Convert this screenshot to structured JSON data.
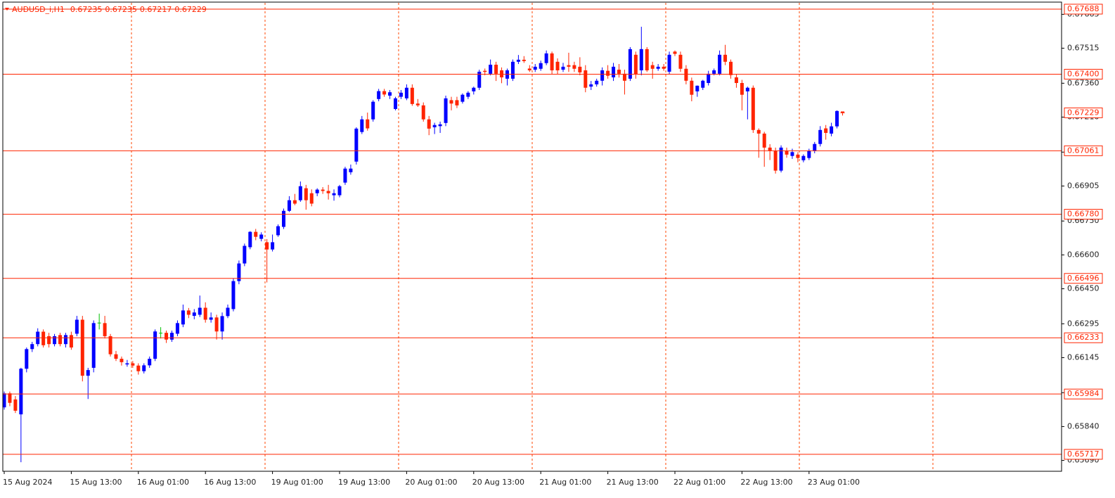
{
  "chart_data": {
    "type": "candlestick",
    "title": "AUDUSD_i,H1",
    "up_color": "#0000ff",
    "down_color": "#ff2400",
    "doji_color": "#00c000",
    "level_color": "#ff2400",
    "ylim": [
      0.65642,
      0.67716
    ],
    "yticks": [
      0.67665,
      0.67515,
      {
        "value": 0.6736,
        "label": "0.67360"
      },
      {
        "value": 0.6721,
        "label": "0.67210"
      },
      0.67055,
      0.66905,
      {
        "value": 0.6675,
        "label": "0.66750"
      },
      {
        "value": 0.666,
        "label": "0.66600"
      },
      {
        "value": 0.6645,
        "label": "0.66450"
      },
      0.66295,
      0.66145,
      {
        "value": 0.6599,
        "label": "0.65990"
      },
      {
        "value": 0.6584,
        "label": "0.65840"
      },
      {
        "value": 0.6569,
        "label": "0.65690"
      }
    ],
    "levels": [
      0.67688,
      {
        "value": 0.674,
        "label": "0.67400"
      },
      0.67061,
      {
        "value": 0.6678,
        "label": "0.66780"
      },
      0.66496,
      0.66233,
      0.65984,
      0.65717
    ],
    "categories": [
      "15 Aug 2024",
      null,
      null,
      null,
      null,
      null,
      null,
      null,
      null,
      null,
      null,
      null,
      "15 Aug 13:00",
      null,
      null,
      null,
      null,
      null,
      null,
      null,
      null,
      null,
      null,
      null,
      "16 Aug 01:00",
      null,
      null,
      null,
      null,
      null,
      null,
      null,
      null,
      null,
      null,
      null,
      "16 Aug 13:00",
      null,
      null,
      null,
      null,
      null,
      null,
      null,
      null,
      null,
      null,
      null,
      "19 Aug 01:00",
      null,
      null,
      null,
      null,
      null,
      null,
      null,
      null,
      null,
      null,
      null,
      "19 Aug 13:00",
      null,
      null,
      null,
      null,
      null,
      null,
      null,
      null,
      null,
      null,
      null,
      "20 Aug 01:00",
      null,
      null,
      null,
      null,
      null,
      null,
      null,
      null,
      null,
      null,
      null,
      "20 Aug 13:00",
      null,
      null,
      null,
      null,
      null,
      null,
      null,
      null,
      null,
      null,
      null,
      "21 Aug 01:00",
      null,
      null,
      null,
      null,
      null,
      null,
      null,
      null,
      null,
      null,
      null,
      "21 Aug 13:00",
      null,
      null,
      null,
      null,
      null,
      null,
      null,
      null,
      null,
      null,
      null,
      "22 Aug 01:00",
      null,
      null,
      null,
      null,
      null,
      null,
      null,
      null,
      null,
      null,
      null,
      "22 Aug 13:00",
      null,
      null,
      null,
      null,
      null,
      null,
      null,
      null,
      null,
      null,
      null,
      "23 Aug 01:00",
      null,
      null,
      null,
      null,
      null,
      null
    ],
    "open": [
      0.65925,
      0.65987,
      0.6596,
      0.65894,
      0.66096,
      0.66183,
      0.66205,
      0.6626,
      0.6624,
      0.66205,
      0.66245,
      0.66205,
      0.66245,
      0.66251,
      0.66313,
      0.66065,
      0.661,
      0.663,
      0.66298,
      0.6624,
      0.6616,
      0.6614,
      0.66115,
      0.6612,
      0.6611,
      0.66085,
      0.66111,
      0.6614,
      0.66255,
      0.66255,
      0.66225,
      0.66251,
      0.66292,
      0.66354,
      0.6633,
      0.66335,
      0.66366,
      0.66313,
      0.66323,
      0.66261,
      0.66329,
      0.6636,
      0.66484,
      0.66562,
      0.66634,
      0.66702,
      0.66671,
      0.66656,
      0.66624,
      0.66687,
      0.66724,
      0.66795,
      0.66842,
      0.66842,
      0.66895,
      0.66873,
      0.66873,
      0.66889,
      0.66883,
      0.66864,
      0.66864,
      0.6692,
      0.66966,
      0.67013,
      0.67144,
      0.672,
      0.672,
      0.6729,
      0.67325,
      0.67305,
      0.67246,
      0.673,
      0.67293,
      0.6734,
      0.6727,
      0.67262,
      0.672,
      0.67165,
      0.6717,
      0.67184,
      0.67285,
      0.67285,
      0.67278,
      0.673,
      0.67324,
      0.6734,
      0.67415,
      0.67402,
      0.67442,
      0.67417,
      0.6738,
      0.6738,
      0.67455,
      0.67464,
      0.67425,
      0.6742,
      0.67424,
      0.67449,
      0.67492,
      0.67455,
      0.6742,
      0.6744,
      0.6744,
      0.67433,
      0.67417,
      0.67345,
      0.67355,
      0.67371,
      0.67415,
      0.67386,
      0.6742,
      0.67402,
      0.6738,
      0.67486,
      0.67417,
      0.67511,
      0.6744,
      0.67424,
      0.67433,
      0.67411,
      0.675,
      0.67486,
      0.67424,
      0.67371,
      0.67324,
      0.6734,
      0.67361,
      0.67402,
      0.67402,
      0.67486,
      0.67455,
      0.67386,
      0.67361,
      0.67324,
      0.6734,
      0.67153,
      0.67137,
      0.67075,
      0.6706,
      0.66973,
      0.6706,
      0.67038,
      0.67044,
      0.67019,
      0.67029,
      0.6706,
      0.67091,
      0.6716,
      0.67137,
      0.67169,
      0.67235
    ],
    "high": [
      0.65995,
      0.65995,
      0.65975,
      0.661,
      0.6619,
      0.66215,
      0.66275,
      0.6627,
      0.66255,
      0.6625,
      0.66255,
      0.66255,
      0.6626,
      0.6633,
      0.6633,
      0.661,
      0.6631,
      0.6634,
      0.6633,
      0.6625,
      0.66175,
      0.6615,
      0.66135,
      0.6613,
      0.6612,
      0.6612,
      0.6615,
      0.6627,
      0.6628,
      0.66265,
      0.66265,
      0.6631,
      0.6638,
      0.66365,
      0.6636,
      0.6642,
      0.6639,
      0.66345,
      0.66335,
      0.66345,
      0.6638,
      0.66495,
      0.66575,
      0.6665,
      0.66705,
      0.66715,
      0.667,
      0.6667,
      0.6669,
      0.66735,
      0.66805,
      0.6686,
      0.6687,
      0.66925,
      0.6691,
      0.6689,
      0.66895,
      0.669,
      0.6691,
      0.6689,
      0.6691,
      0.6699,
      0.67,
      0.67165,
      0.67215,
      0.6723,
      0.67285,
      0.67335,
      0.67335,
      0.6733,
      0.673,
      0.6733,
      0.67355,
      0.67355,
      0.6729,
      0.67275,
      0.67215,
      0.67185,
      0.6719,
      0.67305,
      0.673,
      0.673,
      0.67315,
      0.67325,
      0.67345,
      0.6742,
      0.67425,
      0.67465,
      0.67455,
      0.6743,
      0.67425,
      0.67465,
      0.67485,
      0.6748,
      0.6744,
      0.67445,
      0.6746,
      0.67505,
      0.675,
      0.6747,
      0.6745,
      0.67495,
      0.67455,
      0.67475,
      0.6744,
      0.6737,
      0.6738,
      0.6743,
      0.6744,
      0.6745,
      0.67445,
      0.6742,
      0.6752,
      0.675,
      0.6761,
      0.6752,
      0.67455,
      0.67445,
      0.67445,
      0.675,
      0.67505,
      0.675,
      0.6744,
      0.67385,
      0.6735,
      0.67375,
      0.67415,
      0.67425,
      0.67505,
      0.6753,
      0.67465,
      0.674,
      0.67375,
      0.67345,
      0.6735,
      0.6716,
      0.67145,
      0.6709,
      0.67075,
      0.67085,
      0.67075,
      0.6707,
      0.67055,
      0.67045,
      0.6707,
      0.671,
      0.6717,
      0.67175,
      0.67185,
      0.6724,
      0.67235
    ],
    "low": [
      0.65915,
      0.6593,
      0.659,
      0.65682,
      0.6608,
      0.6617,
      0.66195,
      0.6619,
      0.6619,
      0.66195,
      0.66195,
      0.6619,
      0.6618,
      0.6624,
      0.6604,
      0.65962,
      0.6608,
      0.6627,
      0.6623,
      0.6615,
      0.6613,
      0.6611,
      0.66105,
      0.661,
      0.6607,
      0.66075,
      0.661,
      0.6613,
      0.6623,
      0.6621,
      0.66215,
      0.6624,
      0.6628,
      0.6632,
      0.66315,
      0.66325,
      0.663,
      0.663,
      0.66225,
      0.66225,
      0.6632,
      0.6635,
      0.6647,
      0.6655,
      0.66625,
      0.66665,
      0.6666,
      0.66478,
      0.66615,
      0.6668,
      0.66715,
      0.6679,
      0.6682,
      0.66835,
      0.668,
      0.66815,
      0.6686,
      0.6687,
      0.66845,
      0.6684,
      0.66855,
      0.6691,
      0.66955,
      0.67,
      0.67135,
      0.6715,
      0.6719,
      0.6728,
      0.673,
      0.6729,
      0.6724,
      0.6729,
      0.67285,
      0.6726,
      0.67255,
      0.6719,
      0.6713,
      0.67135,
      0.6714,
      0.6717,
      0.6724,
      0.6725,
      0.6727,
      0.6729,
      0.6731,
      0.6733,
      0.67395,
      0.67395,
      0.6737,
      0.6736,
      0.6735,
      0.6737,
      0.67445,
      0.6745,
      0.6741,
      0.6741,
      0.67415,
      0.6744,
      0.674,
      0.674,
      0.6741,
      0.6741,
      0.6741,
      0.67395,
      0.6732,
      0.6733,
      0.67345,
      0.6735,
      0.6738,
      0.6737,
      0.67385,
      0.6731,
      0.6737,
      0.6738,
      0.67395,
      0.6741,
      0.6738,
      0.67415,
      0.67415,
      0.674,
      0.6748,
      0.6741,
      0.67355,
      0.6728,
      0.673,
      0.6733,
      0.6735,
      0.67395,
      0.67395,
      0.6744,
      0.6738,
      0.6734,
      0.6724,
      0.672,
      0.6714,
      0.6703,
      0.6699,
      0.6702,
      0.6696,
      0.66965,
      0.6703,
      0.67025,
      0.6701,
      0.6701,
      0.6702,
      0.6705,
      0.6708,
      0.6711,
      0.67125,
      0.6716,
      0.67217
    ],
    "close": [
      0.65987,
      0.65945,
      0.6591,
      0.66096,
      0.66183,
      0.66205,
      0.6626,
      0.662,
      0.66205,
      0.6624,
      0.66205,
      0.66245,
      0.6619,
      0.66313,
      0.66065,
      0.6609,
      0.66298,
      0.663,
      0.6624,
      0.6616,
      0.6614,
      0.66125,
      0.6612,
      0.6611,
      0.66085,
      0.66111,
      0.6614,
      0.66261,
      0.66255,
      0.66225,
      0.66255,
      0.66298,
      0.66354,
      0.66335,
      0.66345,
      0.66366,
      0.66313,
      0.66323,
      0.66261,
      0.66329,
      0.66366,
      0.66484,
      0.66562,
      0.6664,
      0.66702,
      0.6668,
      0.6669,
      0.66624,
      0.66656,
      0.66727,
      0.66795,
      0.66842,
      0.66827,
      0.66904,
      0.66842,
      0.66827,
      0.66889,
      0.66883,
      0.66873,
      0.66873,
      0.66904,
      0.66982,
      0.66982,
      0.67159,
      0.672,
      0.6716,
      0.67278,
      0.67325,
      0.6731,
      0.6732,
      0.67293,
      0.67318,
      0.6734,
      0.67268,
      0.67262,
      0.672,
      0.67159,
      0.67175,
      0.67178,
      0.67293,
      0.6727,
      0.67262,
      0.67309,
      0.67318,
      0.6734,
      0.67411,
      0.6741,
      0.67442,
      0.67402,
      0.67386,
      0.67417,
      0.67455,
      0.67464,
      0.67458,
      0.67417,
      0.67433,
      0.67449,
      0.67492,
      0.67417,
      0.67417,
      0.67433,
      0.67433,
      0.67424,
      0.67408,
      0.6734,
      0.67355,
      0.67371,
      0.67417,
      0.67393,
      0.67433,
      0.67402,
      0.67371,
      0.67511,
      0.674,
      0.67511,
      0.67417,
      0.67424,
      0.67433,
      0.67424,
      0.67486,
      0.6749,
      0.67424,
      0.67371,
      0.67309,
      0.67349,
      0.67371,
      0.67402,
      0.67417,
      0.67486,
      0.67455,
      0.67396,
      0.67361,
      0.67309,
      0.6734,
      0.67153,
      0.67137,
      0.67075,
      0.6706,
      0.66973,
      0.67075,
      0.67044,
      0.67055,
      0.67029,
      0.67038,
      0.6706,
      0.67091,
      0.67153,
      0.6714,
      0.67169,
      0.67237,
      0.67229
    ]
  }
}
